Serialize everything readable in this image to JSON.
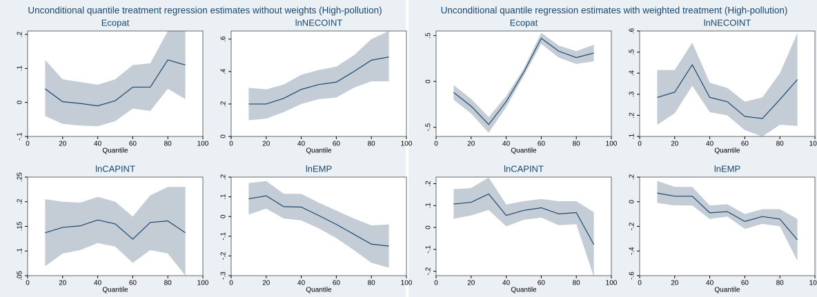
{
  "figure_titles": [
    "Unconditional quantile treatment regression estimates without weights (High-pollution)",
    "Unconditional quantile regression estimates with weighted treatment (High-pollution)"
  ],
  "chart_data": [
    {
      "type": "line",
      "title": "Ecopat",
      "xlabel": "Quantile",
      "x": [
        10,
        20,
        30,
        40,
        50,
        60,
        70,
        80,
        90
      ],
      "xlim": [
        0,
        100
      ],
      "xticks": [
        0,
        20,
        40,
        60,
        80,
        100
      ],
      "ylim": [
        -0.1,
        0.21
      ],
      "yticks": [
        {
          "value": -0.1,
          "label": "-.1"
        },
        0,
        {
          "value": 0.1,
          "label": ".1"
        },
        {
          "value": 0.2,
          "label": ".2"
        }
      ],
      "series": [
        {
          "color": "#1a476f",
          "band_color": "#c4ccd6",
          "values": [
            0.04,
            0.002,
            -0.003,
            -0.01,
            0.005,
            0.045,
            0.045,
            0.125,
            0.11
          ],
          "upper": [
            0.125,
            0.068,
            0.06,
            0.052,
            0.068,
            0.11,
            0.115,
            0.21,
            0.21
          ],
          "lower": [
            -0.04,
            -0.063,
            -0.068,
            -0.07,
            -0.055,
            -0.018,
            -0.025,
            0.04,
            0.01
          ]
        }
      ]
    },
    {
      "type": "line",
      "title": "lnNECOINT",
      "xlabel": "Quantile",
      "x": [
        10,
        20,
        30,
        40,
        50,
        60,
        70,
        80,
        90
      ],
      "xlim": [
        0,
        100
      ],
      "xticks": [
        0,
        20,
        40,
        60,
        80,
        100
      ],
      "ylim": [
        0,
        0.65
      ],
      "yticks": [
        0,
        {
          "value": 0.2,
          "label": ".2"
        },
        {
          "value": 0.4,
          "label": ".4"
        },
        {
          "value": 0.6,
          "label": ".6"
        }
      ],
      "series": [
        {
          "color": "#1a476f",
          "band_color": "#c4ccd6",
          "values": [
            0.2,
            0.2,
            0.235,
            0.29,
            0.32,
            0.335,
            0.4,
            0.47,
            0.49
          ],
          "upper": [
            0.3,
            0.29,
            0.32,
            0.38,
            0.41,
            0.43,
            0.5,
            0.6,
            0.65
          ],
          "lower": [
            0.1,
            0.11,
            0.15,
            0.2,
            0.23,
            0.24,
            0.3,
            0.34,
            0.34
          ]
        }
      ]
    },
    {
      "type": "line",
      "title": "lnCAPINT",
      "xlabel": "Quantile",
      "x": [
        10,
        20,
        30,
        40,
        50,
        60,
        70,
        80,
        90
      ],
      "xlim": [
        0,
        100
      ],
      "xticks": [
        0,
        20,
        40,
        60,
        80,
        100
      ],
      "ylim": [
        0.05,
        0.25
      ],
      "yticks": [
        {
          "value": 0.05,
          "label": ".05"
        },
        {
          "value": 0.1,
          "label": ".1"
        },
        {
          "value": 0.15,
          "label": ".15"
        },
        {
          "value": 0.2,
          "label": ".2"
        },
        {
          "value": 0.25,
          "label": ".25"
        }
      ],
      "series": [
        {
          "color": "#1a476f",
          "band_color": "#c4ccd6",
          "values": [
            0.137,
            0.148,
            0.151,
            0.163,
            0.155,
            0.124,
            0.158,
            0.161,
            0.137
          ],
          "upper": [
            0.205,
            0.2,
            0.198,
            0.21,
            0.2,
            0.17,
            0.213,
            0.23,
            0.23
          ],
          "lower": [
            0.069,
            0.095,
            0.102,
            0.116,
            0.109,
            0.076,
            0.102,
            0.095,
            0.05
          ]
        }
      ]
    },
    {
      "type": "line",
      "title": "lnEMP",
      "xlabel": "Quantile",
      "x": [
        10,
        20,
        30,
        40,
        50,
        60,
        70,
        80,
        90
      ],
      "xlim": [
        0,
        100
      ],
      "xticks": [
        0,
        20,
        40,
        60,
        80,
        100
      ],
      "ylim": [
        -0.3,
        0.2
      ],
      "yticks": [
        {
          "value": -0.3,
          "label": "-.3"
        },
        {
          "value": -0.2,
          "label": "-.2"
        },
        {
          "value": -0.1,
          "label": "-.1"
        },
        0,
        {
          "value": 0.1,
          "label": ".1"
        },
        {
          "value": 0.2,
          "label": ".2"
        }
      ],
      "series": [
        {
          "color": "#1a476f",
          "band_color": "#c4ccd6",
          "values": [
            0.09,
            0.105,
            0.05,
            0.048,
            0.005,
            -0.04,
            -0.09,
            -0.14,
            -0.15
          ],
          "upper": [
            0.17,
            0.18,
            0.115,
            0.115,
            0.07,
            0.03,
            -0.01,
            -0.045,
            -0.04
          ],
          "lower": [
            0.01,
            0.04,
            -0.01,
            -0.02,
            -0.06,
            -0.11,
            -0.17,
            -0.235,
            -0.26
          ]
        }
      ]
    },
    {
      "type": "line",
      "title": "Ecopat",
      "xlabel": "Quantile",
      "x": [
        10,
        20,
        30,
        40,
        50,
        60,
        70,
        80,
        90
      ],
      "xlim": [
        0,
        100
      ],
      "xticks": [
        0,
        20,
        40,
        60,
        80,
        100
      ],
      "ylim": [
        -0.6,
        0.55
      ],
      "yticks": [
        {
          "value": -0.5,
          "label": "-.5"
        },
        0,
        {
          "value": 0.5,
          "label": ".5"
        }
      ],
      "series": [
        {
          "color": "#1a476f",
          "band_color": "#c4ccd6",
          "values": [
            -0.12,
            -0.27,
            -0.47,
            -0.22,
            0.1,
            0.47,
            0.33,
            0.26,
            0.31
          ],
          "upper": [
            -0.04,
            -0.19,
            -0.39,
            -0.16,
            0.14,
            0.53,
            0.39,
            0.33,
            0.4
          ],
          "lower": [
            -0.2,
            -0.35,
            -0.56,
            -0.28,
            0.06,
            0.41,
            0.26,
            0.19,
            0.22
          ]
        }
      ]
    },
    {
      "type": "line",
      "title": "lnNECOINT",
      "xlabel": "Quantile",
      "x": [
        10,
        20,
        30,
        40,
        50,
        60,
        70,
        80,
        90
      ],
      "xlim": [
        0,
        100
      ],
      "xticks": [
        0,
        20,
        40,
        60,
        80,
        100
      ],
      "ylim": [
        0.1,
        0.6
      ],
      "yticks": [
        {
          "value": 0.1,
          "label": ".1"
        },
        {
          "value": 0.2,
          "label": ".2"
        },
        {
          "value": 0.3,
          "label": ".3"
        },
        {
          "value": 0.4,
          "label": ".4"
        },
        {
          "value": 0.5,
          "label": ".5"
        },
        {
          "value": 0.6,
          "label": ".6"
        }
      ],
      "series": [
        {
          "color": "#1a476f",
          "band_color": "#c4ccd6",
          "values": [
            0.285,
            0.31,
            0.44,
            0.285,
            0.265,
            0.195,
            0.185,
            0.275,
            0.37
          ],
          "upper": [
            0.415,
            0.415,
            0.545,
            0.355,
            0.33,
            0.265,
            0.285,
            0.4,
            0.59
          ],
          "lower": [
            0.155,
            0.21,
            0.34,
            0.215,
            0.2,
            0.13,
            0.1,
            0.155,
            0.15
          ]
        }
      ]
    },
    {
      "type": "line",
      "title": "lnCAPINT",
      "xlabel": "Quantile",
      "x": [
        10,
        20,
        30,
        40,
        50,
        60,
        70,
        80,
        90
      ],
      "xlim": [
        0,
        100
      ],
      "xticks": [
        0,
        20,
        40,
        60,
        80,
        100
      ],
      "ylim": [
        -0.22,
        0.23
      ],
      "yticks": [
        {
          "value": -0.2,
          "label": "-.2"
        },
        {
          "value": -0.1,
          "label": "-.1"
        },
        0,
        {
          "value": 0.1,
          "label": ".1"
        },
        {
          "value": 0.2,
          "label": ".2"
        }
      ],
      "series": [
        {
          "color": "#1a476f",
          "band_color": "#c4ccd6",
          "values": [
            0.107,
            0.115,
            0.153,
            0.055,
            0.078,
            0.09,
            0.062,
            0.068,
            -0.078
          ],
          "upper": [
            0.175,
            0.18,
            0.228,
            0.105,
            0.12,
            0.13,
            0.12,
            0.12,
            0.07
          ],
          "lower": [
            0.04,
            0.055,
            0.08,
            0.005,
            0.035,
            0.045,
            0.01,
            0.015,
            -0.225
          ]
        }
      ]
    },
    {
      "type": "line",
      "title": "lnEMP",
      "xlabel": "Quantile",
      "x": [
        10,
        20,
        30,
        40,
        50,
        60,
        70,
        80,
        90
      ],
      "xlim": [
        0,
        100
      ],
      "xticks": [
        0,
        20,
        40,
        60,
        80,
        100
      ],
      "ylim": [
        -0.6,
        0.2
      ],
      "yticks": [
        {
          "value": -0.6,
          "label": "-.6"
        },
        {
          "value": -0.4,
          "label": "-.4"
        },
        {
          "value": -0.2,
          "label": "-.2"
        },
        0,
        {
          "value": 0.2,
          "label": ".2"
        }
      ],
      "series": [
        {
          "color": "#1a476f",
          "band_color": "#c4ccd6",
          "values": [
            0.07,
            0.045,
            0.045,
            -0.09,
            -0.08,
            -0.16,
            -0.12,
            -0.14,
            -0.31
          ],
          "upper": [
            0.17,
            0.12,
            0.12,
            -0.03,
            -0.02,
            -0.1,
            -0.06,
            -0.06,
            -0.14
          ],
          "lower": [
            -0.01,
            -0.03,
            -0.03,
            -0.14,
            -0.12,
            -0.22,
            -0.18,
            -0.2,
            -0.48
          ]
        }
      ]
    }
  ]
}
